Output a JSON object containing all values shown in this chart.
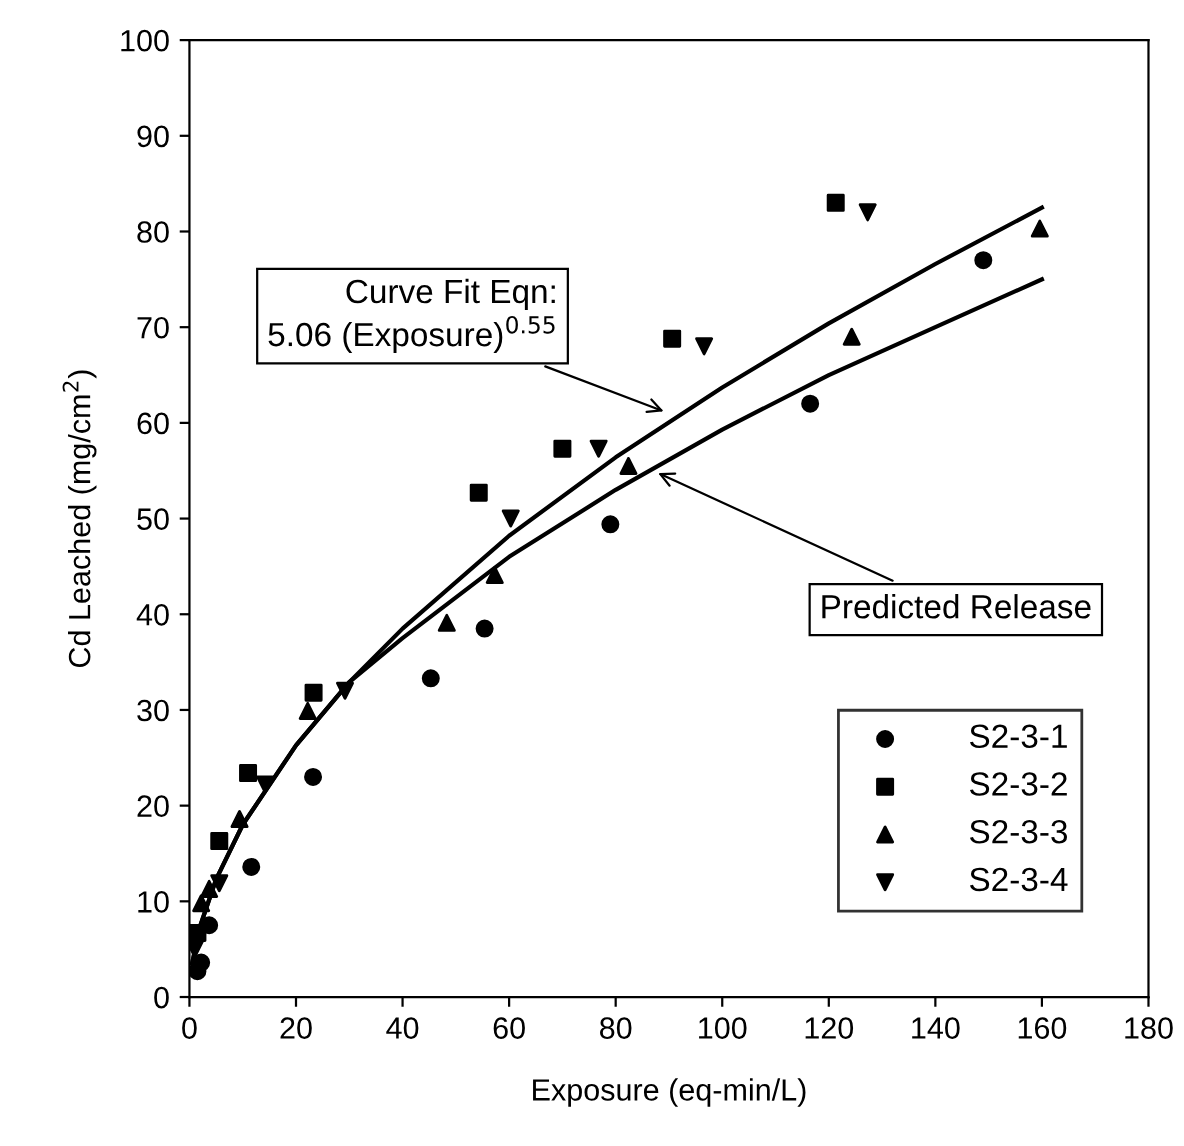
{
  "chart_data": {
    "type": "scatter",
    "xlabel": "Exposure (eq-min/L)",
    "ylabel": "Cd Leached (mg/cm$^{2}$)",
    "xlim": [
      0,
      180
    ],
    "ylim": [
      0,
      100
    ],
    "xticks": [
      0,
      20,
      40,
      60,
      80,
      100,
      120,
      140,
      160,
      180
    ],
    "yticks": [
      0,
      10,
      20,
      30,
      40,
      50,
      60,
      70,
      80,
      90,
      100
    ],
    "grid": false,
    "legend": "bottom right",
    "series": [
      {
        "name": "S2-3-1",
        "color": "#000000",
        "marker": "circle",
        "x": [
          1.5,
          2.2,
          3.7,
          11.6,
          23.2,
          45.3,
          55.4,
          79,
          116.5,
          149
        ],
        "values": [
          2.7,
          3.6,
          7.5,
          13.6,
          23.0,
          33.3,
          38.5,
          49.4,
          62.0,
          77.0
        ]
      },
      {
        "name": "S2-3-2",
        "color": "#000000",
        "marker": "square",
        "x": [
          1.5,
          5.6,
          11,
          23.3,
          54.3,
          70,
          90.6,
          121.3
        ],
        "values": [
          6.7,
          16.3,
          23.4,
          31.8,
          52.7,
          57.3,
          68.8,
          83.0
        ]
      },
      {
        "name": "S2-3-3",
        "color": "#000000",
        "marker": "triangle",
        "x": [
          2.2,
          3.7,
          9.4,
          22.2,
          48.3,
          57.3,
          82.4,
          124.3,
          159.6
        ],
        "values": [
          9.8,
          11.3,
          18.6,
          29.9,
          39.1,
          44.1,
          55.5,
          69.0,
          80.3
        ]
      },
      {
        "name": "S2-3-4",
        "color": "#000000",
        "marker": "triangle_down",
        "x": [
          1.0,
          5.6,
          14.2,
          29.2,
          60.3,
          76.8,
          96.6,
          127.3
        ],
        "values": [
          5.0,
          11.9,
          22.2,
          32.0,
          50.0,
          57.3,
          68.0,
          82.0
        ]
      },
      {
        "type": "line",
        "color": "#000000",
        "marker": "none",
        "line_style": "solid",
        "x": [
          0.5,
          2,
          5,
          10,
          20,
          30,
          40,
          60,
          80,
          100,
          120,
          140,
          160
        ],
        "values": [
          3.5,
          7.4,
          12.3,
          18.0,
          26.3,
          32.9,
          38.5,
          48.2,
          56.4,
          63.7,
          70.4,
          76.6,
          82.5
        ]
      },
      {
        "type": "line",
        "color": "#000000",
        "marker": "none",
        "line_style": "solid",
        "x": [
          0.5,
          2,
          5,
          10,
          20,
          30,
          40,
          60,
          80,
          100,
          120,
          140,
          160
        ],
        "values": [
          3.5,
          7.4,
          12.3,
          18.0,
          26.3,
          32.9,
          37.5,
          46.0,
          53.0,
          59.3,
          65.0,
          70.0,
          75.0
        ]
      }
    ],
    "annotations": [
      {
        "text": "Curve Fit Eqn:\n5.06 (Exposure)$^{0.55}$",
        "x": 90,
        "y": 61
      },
      {
        "text": "Predicted Release",
        "x": 87,
        "y": 55
      }
    ]
  }
}
